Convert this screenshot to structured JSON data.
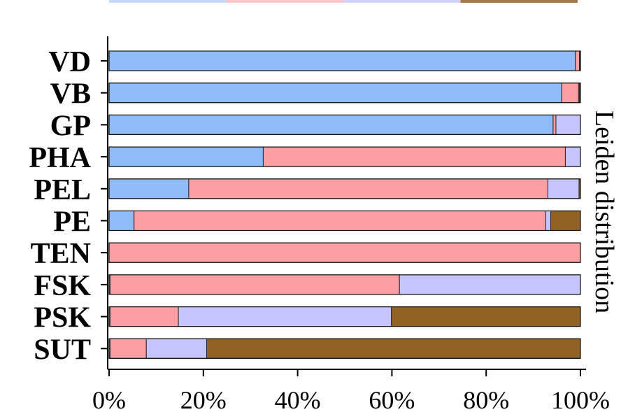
{
  "chart_data": {
    "type": "bar",
    "orientation": "horizontal",
    "stacked": true,
    "categories": [
      "VD",
      "VB",
      "GP",
      "PHA",
      "PEL",
      "PE",
      "TEN",
      "FSK",
      "PSK",
      "SUT"
    ],
    "series": [
      {
        "values": [
          98.9,
          96.0,
          94.2,
          32.7,
          16.9,
          5.3,
          0.0,
          0.2,
          0.2,
          0.2
        ],
        "color": "#8FBBF8"
      },
      {
        "values": [
          0.9,
          3.6,
          0.6,
          64.1,
          76.2,
          87.3,
          100.0,
          61.4,
          14.5,
          7.7
        ],
        "color": "#FC9FA3"
      },
      {
        "values": [
          0.1,
          0.2,
          5.2,
          3.2,
          6.6,
          1.1,
          0.0,
          38.4,
          45.2,
          12.8
        ],
        "color": "#C5C4FC"
      },
      {
        "values": [
          0.1,
          0.2,
          0.0,
          0.0,
          0.3,
          6.3,
          0.0,
          0.0,
          40.1,
          79.3
        ],
        "color": "#926224"
      }
    ],
    "xticks": [
      "0%",
      "20%",
      "40%",
      "60%",
      "80%",
      "100%"
    ],
    "xlim": [
      0,
      100
    ],
    "side_label": "Leiden distribution",
    "legend_strip_colors": [
      "#C6DAF8",
      "#FFC7CC",
      "#D3D2FC",
      "#A57A48"
    ]
  }
}
